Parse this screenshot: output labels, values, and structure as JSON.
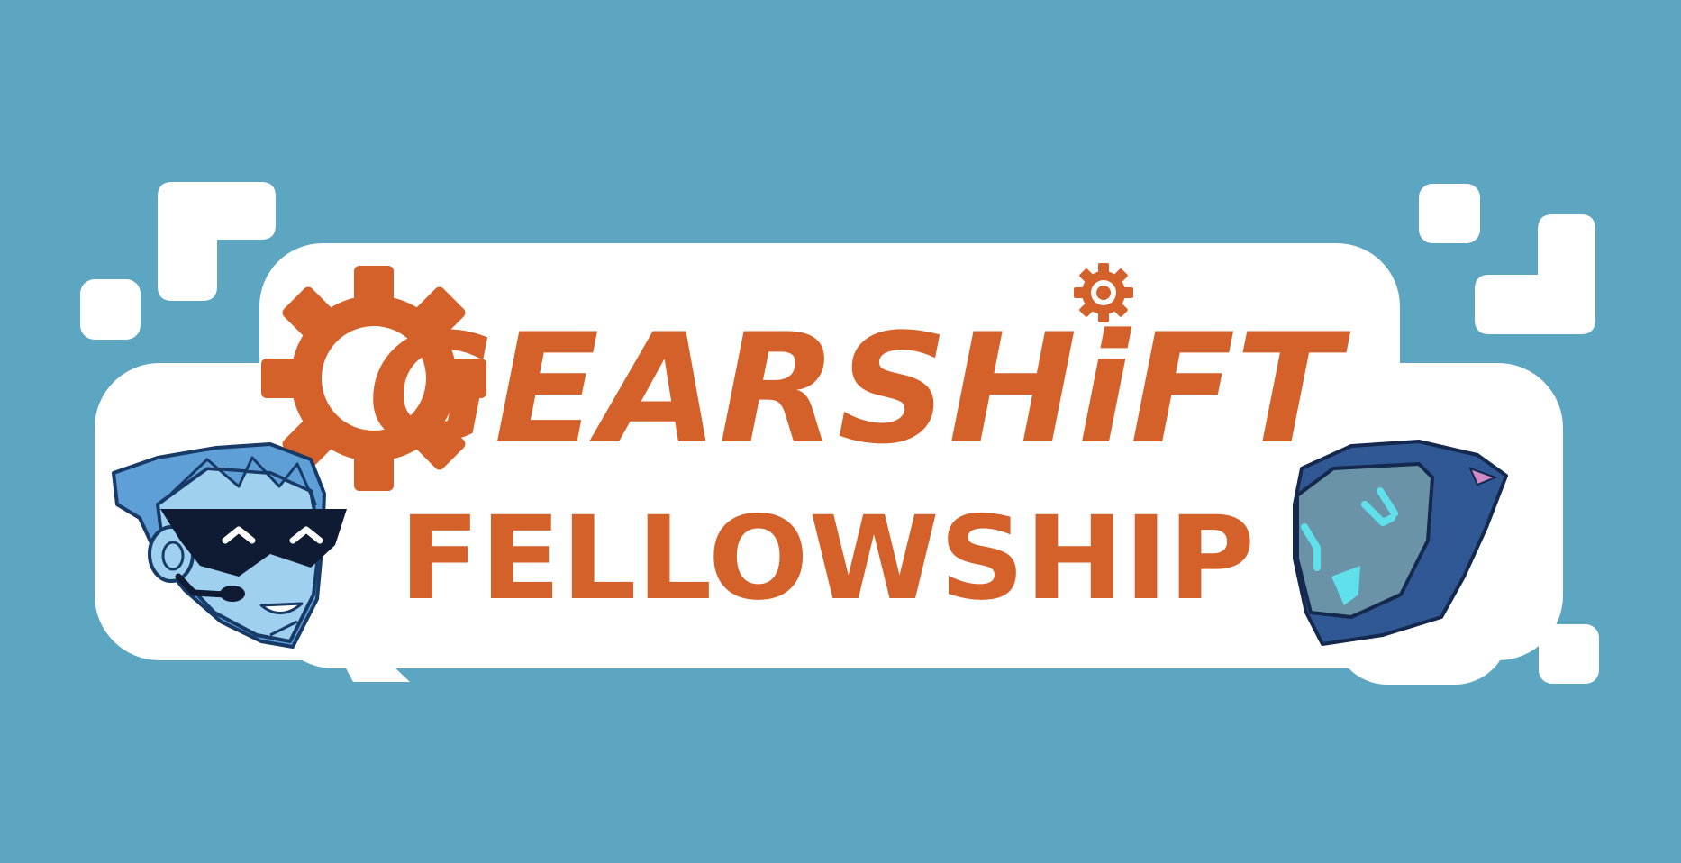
{
  "banner": {
    "title": "GEARSHiFT",
    "subtitle": "FELLOWSHIP"
  },
  "colors": {
    "background": "#5ca6c1",
    "bubble": "#ffffff",
    "brand_orange": "#d4612a",
    "character_skin": "#9fd0f0",
    "character_hair": "#5f9fd8",
    "robot_body": "#2f5894",
    "robot_visor": "#6a93a8",
    "robot_glow": "#5fe0ea"
  },
  "icons": {
    "logo_gear": "gear-icon",
    "small_gear": "small-gear-icon"
  }
}
